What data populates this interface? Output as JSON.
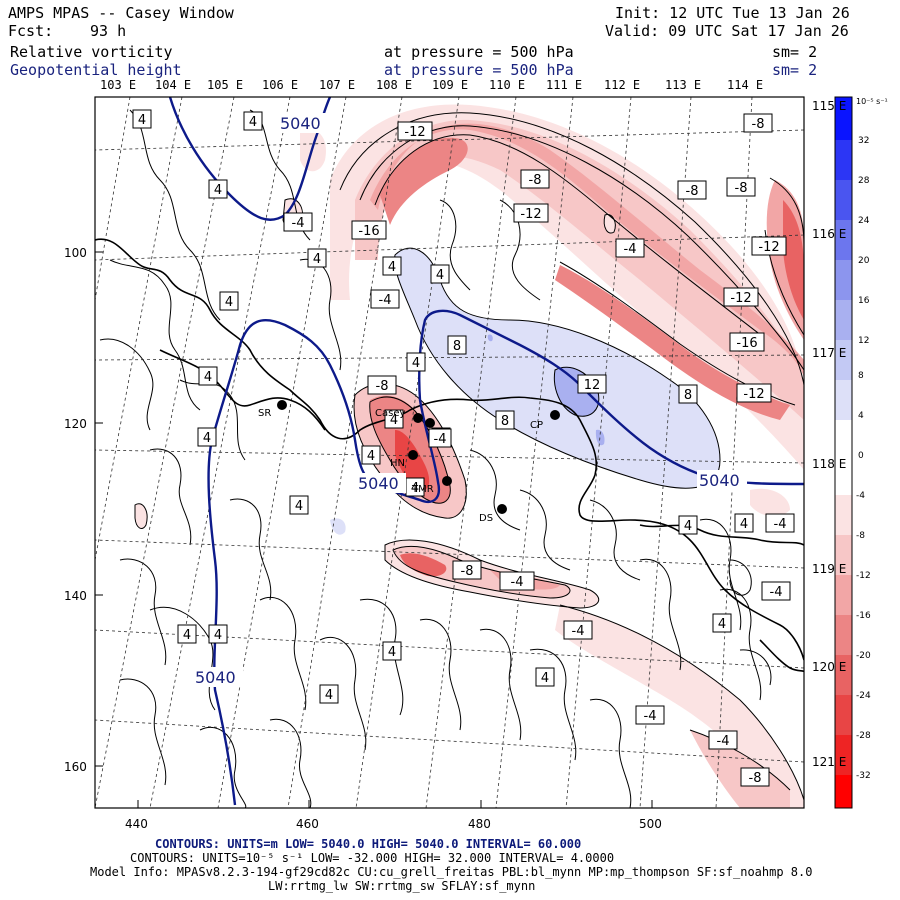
{
  "header": {
    "title": "AMPS MPAS -- Casey Window",
    "init": "Init: 12 UTC Tue 13 Jan 26",
    "fcst_label": "Fcst:",
    "fcst_value": "93 h",
    "valid": "Valid: 09 UTC Sat 17 Jan 26",
    "field1": "Relative vorticity",
    "field1_pressure": "at pressure =  500 hPa",
    "field1_sm": "sm= 2",
    "field2": "Geopotential height",
    "field2_pressure": "at pressure =  500 hPa",
    "field2_sm": "sm= 2"
  },
  "top_lon_labels": [
    "103 E",
    "104 E",
    "105 E",
    "106 E",
    "107 E",
    "108 E",
    "109 E",
    "110 E",
    "111 E",
    "112 E",
    "113 E",
    "114 E"
  ],
  "right_lon_labels": [
    "115 E",
    "116 E",
    "117 E",
    "118 E",
    "119 E",
    "120 E",
    "121 E"
  ],
  "x_ticks": [
    "440",
    "460",
    "480",
    "500"
  ],
  "y_ticks": [
    "100",
    "120",
    "140",
    "160"
  ],
  "stations": [
    "SR",
    "Casey",
    "HN",
    "TMR",
    "CP",
    "DS"
  ],
  "height_labels": [
    "5040",
    "5040",
    "5040",
    "5040"
  ],
  "vort_labels": {
    "pos": [
      "4",
      "4",
      "4",
      "4",
      "4",
      "4",
      "4",
      "4",
      "4",
      "4",
      "4",
      "4",
      "4",
      "4",
      "4",
      "4",
      "4",
      "4",
      "4",
      "4",
      "4",
      "4",
      "4",
      "8",
      "8",
      "8",
      "12"
    ],
    "neg": [
      "-12",
      "-8",
      "-8",
      "-8",
      "-12",
      "-4",
      "-16",
      "-4",
      "-4",
      "-12",
      "-16",
      "-12",
      "-8",
      "-12",
      "-8",
      "-4",
      "-4",
      "-4",
      "-4",
      "-4",
      "-4",
      "-4",
      "-8",
      "-8"
    ]
  },
  "colorbar": {
    "unit": "10⁻⁵ s⁻¹",
    "labels": [
      "32",
      "28",
      "24",
      "20",
      "16",
      "12",
      "8",
      "4",
      "0",
      "-4",
      "-8",
      "-12",
      "-16",
      "-20",
      "-24",
      "-28",
      "-32"
    ],
    "colors": [
      "#0a14ff",
      "#2c36f5",
      "#4a55f0",
      "#6c76ee",
      "#8c95ee",
      "#a9b0f0",
      "#c3c9f4",
      "#dde0f8",
      "#ffffff",
      "#fbe3e3",
      "#f7c7c7",
      "#f2a6a6",
      "#ec8585",
      "#e86363",
      "#e84545",
      "#ee2424",
      "#ff0000"
    ]
  },
  "footer": {
    "line1": "CONTOURS: UNITS=m  LOW=  5040.0       HIGH=  5040.0       INTERVAL=   60.000",
    "line2": "CONTOURS: UNITS=10⁻⁵ s⁻¹  LOW= -32.000       HIGH= 32.000        INTERVAL=  4.0000",
    "line3": "Model Info: MPASv8.2.3-194-gf29cd82c CU:cu_grell_freitas PBL:bl_mynn MP:mp_thompson SF:sf_noahmp 8.0",
    "line4": "LW:rrtmg_lw SW:rrtmg_sw SFLAY:sf_mynn"
  }
}
